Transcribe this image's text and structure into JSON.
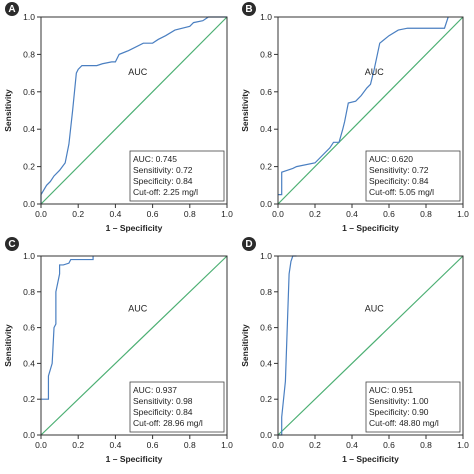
{
  "chart_data": [
    {
      "panel": "A",
      "type": "line",
      "xlabel": "1 – Specificity",
      "ylabel": "Sensitivity",
      "xlim": [
        0,
        1
      ],
      "ylim": [
        0,
        1
      ],
      "xticks": [
        "0.0",
        "0.2",
        "0.4",
        "0.6",
        "0.8",
        "1.0"
      ],
      "yticks": [
        "0.0",
        "0.2",
        "0.4",
        "0.6",
        "0.8",
        "1.0"
      ],
      "curve_color": "#4a7fc1",
      "reference_color": "#4caf73",
      "auc_label": "AUC",
      "stats": [
        "AUC: 0.745",
        "Sensitivity: 0.72",
        "Specificity: 0.84",
        "Cut-off: 2.25 mg/l"
      ],
      "series": [
        {
          "x": [
            0,
            0,
            0.03,
            0.05,
            0.07,
            0.1,
            0.13,
            0.15,
            0.17,
            0.18,
            0.19,
            0.2,
            0.22,
            0.3,
            0.33,
            0.38,
            0.4,
            0.42,
            0.47,
            0.55,
            0.58,
            0.6,
            0.63,
            0.67,
            0.72,
            0.8,
            0.82,
            0.87,
            0.9,
            1.0
          ],
          "y": [
            0,
            0.05,
            0.1,
            0.12,
            0.15,
            0.18,
            0.22,
            0.32,
            0.5,
            0.6,
            0.7,
            0.72,
            0.74,
            0.74,
            0.75,
            0.76,
            0.76,
            0.8,
            0.82,
            0.86,
            0.86,
            0.86,
            0.88,
            0.9,
            0.93,
            0.95,
            0.97,
            0.98,
            1.0,
            1.0
          ]
        }
      ]
    },
    {
      "panel": "B",
      "type": "line",
      "xlabel": "1 – Specificity",
      "ylabel": "Sensitivity",
      "xlim": [
        0,
        1
      ],
      "ylim": [
        0,
        1
      ],
      "xticks": [
        "0.0",
        "0.2",
        "0.4",
        "0.6",
        "0.8",
        "1.0"
      ],
      "yticks": [
        "0.0",
        "0.2",
        "0.4",
        "0.6",
        "0.8",
        "1.0"
      ],
      "curve_color": "#4a7fc1",
      "reference_color": "#4caf73",
      "auc_label": "AUC",
      "stats": [
        "AUC: 0.620",
        "Sensitivity: 0.72",
        "Specificity: 0.84",
        "Cut-off: 5.05 mg/l"
      ],
      "series": [
        {
          "x": [
            0,
            0.02,
            0.02,
            0.08,
            0.1,
            0.2,
            0.25,
            0.28,
            0.3,
            0.33,
            0.35,
            0.36,
            0.38,
            0.42,
            0.45,
            0.48,
            0.5,
            0.52,
            0.55,
            0.6,
            0.65,
            0.7,
            0.8,
            0.85,
            0.9,
            0.92
          ],
          "y": [
            0.05,
            0.05,
            0.17,
            0.19,
            0.2,
            0.22,
            0.27,
            0.3,
            0.33,
            0.33,
            0.4,
            0.44,
            0.54,
            0.55,
            0.58,
            0.62,
            0.64,
            0.72,
            0.86,
            0.9,
            0.93,
            0.94,
            0.94,
            0.94,
            0.94,
            1.0
          ]
        }
      ]
    },
    {
      "panel": "C",
      "type": "line",
      "xlabel": "1 – Specificity",
      "ylabel": "Sensitivity",
      "xlim": [
        0,
        1
      ],
      "ylim": [
        0,
        1
      ],
      "xticks": [
        "0.0",
        "0.2",
        "0.4",
        "0.6",
        "0.8",
        "1.0"
      ],
      "yticks": [
        "0.0",
        "0.2",
        "0.4",
        "0.6",
        "0.8",
        "1.0"
      ],
      "curve_color": "#4a7fc1",
      "reference_color": "#4caf73",
      "auc_label": "AUC",
      "stats": [
        "AUC: 0.937",
        "Sensitivity: 0.98",
        "Specificity: 0.84",
        "Cut-off: 28.96 mg/l"
      ],
      "series": [
        {
          "x": [
            0,
            0.02,
            0.04,
            0.04,
            0.06,
            0.07,
            0.08,
            0.08,
            0.09,
            0.1,
            0.1,
            0.12,
            0.15,
            0.16,
            0.18,
            0.2,
            0.28,
            0.28
          ],
          "y": [
            0.2,
            0.2,
            0.2,
            0.33,
            0.4,
            0.6,
            0.62,
            0.8,
            0.85,
            0.9,
            0.95,
            0.95,
            0.96,
            0.98,
            0.98,
            0.98,
            0.98,
            1.0
          ]
        }
      ]
    },
    {
      "panel": "D",
      "type": "line",
      "xlabel": "1 – Specificity",
      "ylabel": "Sensitivity",
      "xlim": [
        0,
        1
      ],
      "ylim": [
        0,
        1
      ],
      "xticks": [
        "0.0",
        "0.2",
        "0.4",
        "0.6",
        "0.8",
        "1.0"
      ],
      "yticks": [
        "0.0",
        "0.2",
        "0.4",
        "0.6",
        "0.8",
        "1.0"
      ],
      "curve_color": "#4a7fc1",
      "reference_color": "#4caf73",
      "auc_label": "AUC",
      "stats": [
        "AUC: 0.951",
        "Sensitivity: 1.00",
        "Specificity: 0.90",
        "Cut-off: 48.80 mg/l"
      ],
      "series": [
        {
          "x": [
            0,
            0.02,
            0.02,
            0.04,
            0.05,
            0.06,
            0.07,
            0.08,
            0.1
          ],
          "y": [
            0,
            0,
            0.1,
            0.3,
            0.6,
            0.9,
            0.97,
            1.0,
            1.0
          ]
        }
      ]
    }
  ]
}
